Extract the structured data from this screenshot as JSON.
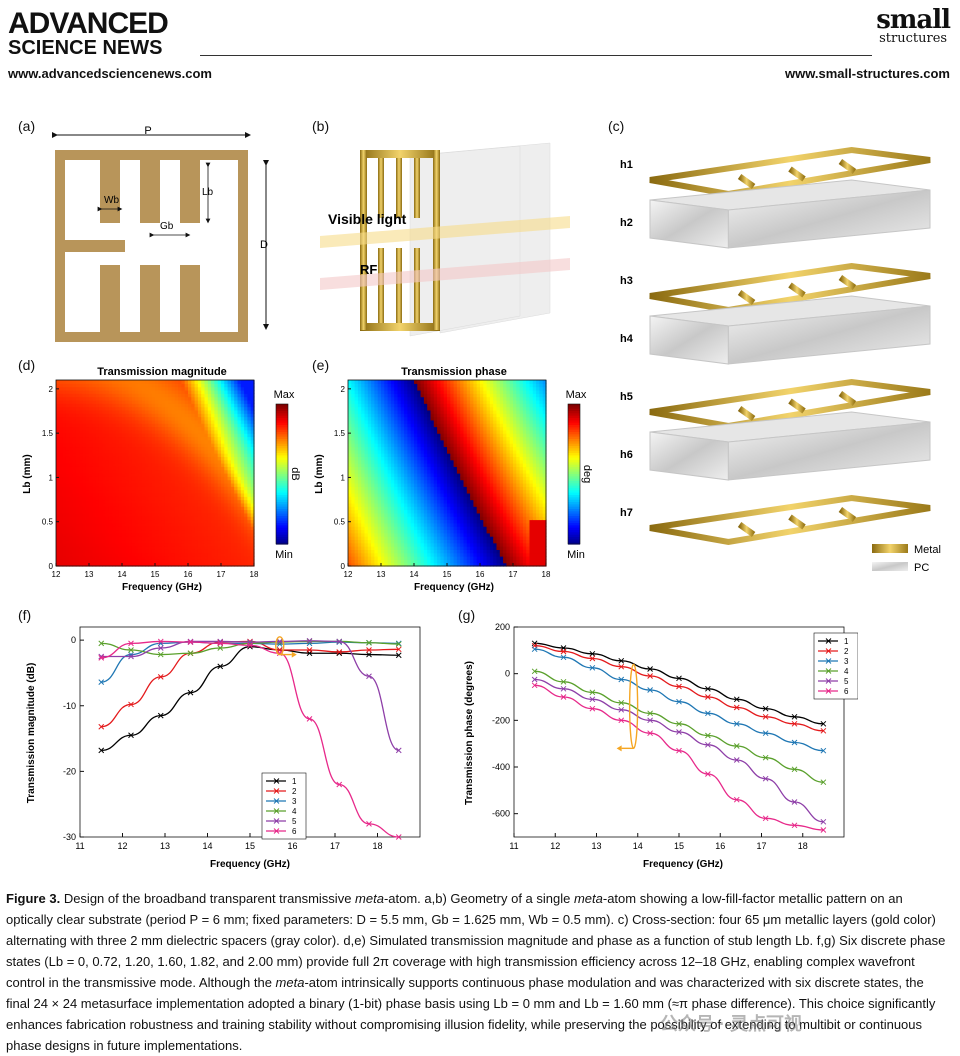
{
  "header": {
    "publisher_line1": "ADVANCED",
    "publisher_line2": "SCIENCE NEWS",
    "publisher_url": "www.advancedsciencenews.com",
    "journal_line1": "small",
    "journal_line2": "structures",
    "journal_url": "www.small-structures.com"
  },
  "panels": {
    "a": {
      "label": "(a)",
      "dims": [
        "P",
        "Wb",
        "Lb",
        "Gb",
        "D"
      ]
    },
    "b": {
      "label": "(b)",
      "beam1": "Visible light",
      "beam2": "RF"
    },
    "c": {
      "label": "(c)",
      "layers": [
        "h1",
        "h2",
        "h3",
        "h4",
        "h5",
        "h6",
        "h7"
      ],
      "legend": [
        "Metal",
        "PC"
      ]
    },
    "d": {
      "label": "(d)",
      "title": "Transmission magnitude",
      "colorbar_unit": "dB",
      "cb_max": "Max",
      "cb_min": "Min"
    },
    "e": {
      "label": "(e)",
      "title": "Transmission phase",
      "colorbar_unit": "deg",
      "cb_max": "Max",
      "cb_min": "Min"
    },
    "f": {
      "label": "(f)"
    },
    "g": {
      "label": "(g)"
    }
  },
  "chart_data": [
    {
      "type": "heatmap",
      "panel": "d",
      "title": "Transmission magnitude",
      "xlabel": "Frequency (GHz)",
      "ylabel": "Lb (mm)",
      "xlim": [
        12,
        18
      ],
      "ylim": [
        0,
        2.1
      ],
      "xticks": [
        "12",
        "13",
        "14",
        "15",
        "16",
        "17",
        "18"
      ],
      "yticks": [
        "0",
        "0.5",
        "1",
        "1.5",
        "2"
      ],
      "colorbar": "dB"
    },
    {
      "type": "heatmap",
      "panel": "e",
      "title": "Transmission phase",
      "xlabel": "Frequency (GHz)",
      "ylabel": "Lb (mm)",
      "xlim": [
        12,
        18
      ],
      "ylim": [
        0,
        2.1
      ],
      "xticks": [
        "12",
        "13",
        "14",
        "15",
        "16",
        "17",
        "18"
      ],
      "yticks": [
        "0",
        "0.5",
        "1",
        "1.5",
        "2"
      ],
      "colorbar": "deg"
    },
    {
      "type": "line",
      "panel": "f",
      "xlabel": "Frequency (GHz)",
      "ylabel": "Transmission magnitude (dB)",
      "xlim": [
        11,
        19
      ],
      "ylim": [
        -30,
        2
      ],
      "xticks": [
        "11",
        "12",
        "13",
        "14",
        "15",
        "16",
        "17",
        "18"
      ],
      "yticks": [
        "0",
        "-10",
        "-20",
        "-30"
      ],
      "legend_position": "lower-right",
      "x": [
        11.5,
        12.2,
        12.9,
        13.6,
        14.3,
        15.0,
        15.7,
        16.4,
        17.1,
        17.8,
        18.5
      ],
      "series": [
        {
          "name": "1",
          "color": "#000000",
          "values": [
            -16.8,
            -14.5,
            -11.5,
            -8,
            -4,
            -1,
            -1.5,
            -2,
            -2,
            -2.2,
            -2.3
          ]
        },
        {
          "name": "2",
          "color": "#e41a1c",
          "values": [
            -13.2,
            -9.8,
            -5.6,
            -2,
            -0.3,
            -0.2,
            -1.5,
            -1.5,
            -1.8,
            -1.5,
            -1.4
          ]
        },
        {
          "name": "3",
          "color": "#1f77b4",
          "values": [
            -6.4,
            -2.2,
            -0.5,
            -0.3,
            -0.5,
            -0.5,
            -0.6,
            -0.5,
            -0.3,
            -0.4,
            -0.5
          ]
        },
        {
          "name": "4",
          "color": "#5aa02c",
          "values": [
            -0.5,
            -1.5,
            -2.2,
            -2,
            -1.2,
            -0.5,
            -0.3,
            -0.2,
            -0.2,
            -0.4,
            -0.6
          ]
        },
        {
          "name": "5",
          "color": "#8e3fa8",
          "values": [
            -2.5,
            -2.5,
            -1.2,
            -0.2,
            -0.2,
            -0.3,
            -0.2,
            -0.1,
            -0.2,
            -5.5,
            -16.8
          ]
        },
        {
          "name": "6",
          "color": "#e7298a",
          "values": [
            -2.7,
            -0.5,
            -0.2,
            -0.3,
            -0.5,
            -0.8,
            -2,
            -12,
            -22,
            -28,
            -30
          ]
        }
      ]
    },
    {
      "type": "line",
      "panel": "g",
      "xlabel": "Frequency (GHz)",
      "ylabel": "Transmission phase (degrees)",
      "xlim": [
        11,
        19
      ],
      "ylim": [
        -700,
        200
      ],
      "xticks": [
        "11",
        "12",
        "13",
        "14",
        "15",
        "16",
        "17",
        "18"
      ],
      "yticks": [
        "200",
        "0",
        "-200",
        "-400",
        "-600"
      ],
      "legend_position": "top-right",
      "x": [
        11.5,
        12.2,
        12.9,
        13.6,
        14.3,
        15.0,
        15.7,
        16.4,
        17.1,
        17.8,
        18.5
      ],
      "series": [
        {
          "name": "1",
          "color": "#000000",
          "values": [
            130,
            110,
            85,
            55,
            20,
            -20,
            -65,
            -110,
            -150,
            -185,
            -215
          ]
        },
        {
          "name": "2",
          "color": "#e41a1c",
          "values": [
            120,
            95,
            65,
            30,
            -10,
            -55,
            -100,
            -145,
            -185,
            -215,
            -245
          ]
        },
        {
          "name": "3",
          "color": "#1f77b4",
          "values": [
            105,
            70,
            25,
            -25,
            -70,
            -120,
            -170,
            -215,
            -255,
            -295,
            -330
          ]
        },
        {
          "name": "4",
          "color": "#5aa02c",
          "values": [
            10,
            -35,
            -80,
            -125,
            -170,
            -215,
            -265,
            -310,
            -360,
            -410,
            -465
          ]
        },
        {
          "name": "5",
          "color": "#8e3fa8",
          "values": [
            -25,
            -65,
            -110,
            -155,
            -200,
            -250,
            -305,
            -370,
            -450,
            -550,
            -635
          ]
        },
        {
          "name": "6",
          "color": "#e7298a",
          "values": [
            -50,
            -100,
            -150,
            -200,
            -255,
            -330,
            -430,
            -540,
            -620,
            -650,
            -670
          ]
        }
      ]
    }
  ],
  "caption": {
    "figure_label": "Figure 3.",
    "title_pre": "Design of the broadband transparent transmissive ",
    "title_italic": "meta",
    "title_post": "-atom.",
    "text1": " a,b) Geometry of a single ",
    "text1_italic": "meta",
    "text2": "-atom showing a low-fill-factor metallic pattern on an optically clear substrate (period P = 6 mm; fixed parameters: D = 5.5 mm, Gb = 1.625 mm, Wb = 0.5 mm). c) Cross-section: four 65 μm metallic layers (gold color) alternating with three 2 mm dielectric spacers (gray color). d,e) Simulated transmission magnitude and phase as a function of stub length Lb. f,g) Six discrete phase states (Lb = 0, 0.72, 1.20, 1.60, 1.82, and 2.00 mm) provide full 2π coverage with high transmission efficiency across 12–18 GHz, enabling complex wavefront control in the transmissive mode. Although the ",
    "text2_italic": "meta",
    "text3": "-atom intrinsically supports continuous phase modulation and was characterized with six discrete states, the final 24 × 24 metasurface implementation adopted a binary (1-bit) phase basis using Lb = 0 mm and Lb = 1.60 mm (≈π phase difference). This choice significantly enhances fabrication robustness and training stability without compromising illusion fidelity, while preserving the possibility of extending to multibit or continuous phase designs in future implementations."
  },
  "watermark": "公众号 · 灵点可视",
  "colors": {
    "gold": "#b8955a",
    "metal": "#d4a82a",
    "orange_marker": "#f5a623"
  }
}
